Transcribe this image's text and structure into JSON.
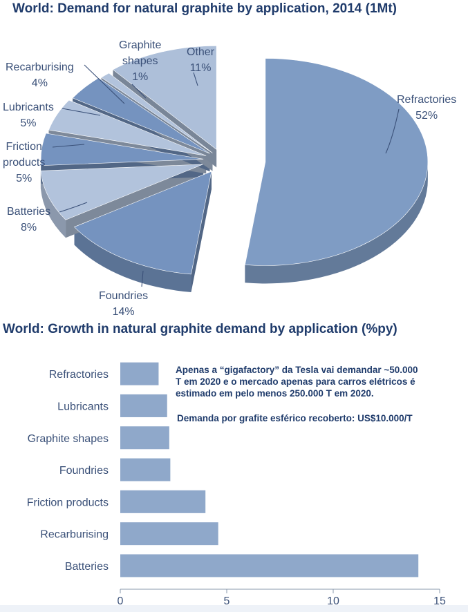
{
  "charts": [
    {
      "type": "pie",
      "title": "World: Demand for natural graphite by application, 2014 (1Mt)",
      "slices": [
        {
          "name": "Refractories",
          "pct_label": "52%",
          "value": 52,
          "color": "#7f9cc4"
        },
        {
          "name": "Foundries",
          "pct_label": "14%",
          "value": 14,
          "color": "#7593bf"
        },
        {
          "name": "Batteries",
          "pct_label": "8%",
          "value": 8,
          "color": "#b2c3dc"
        },
        {
          "name": "Friction products",
          "name_lines": [
            "Friction",
            "products"
          ],
          "pct_label": "5%",
          "value": 5,
          "color": "#7593bf"
        },
        {
          "name": "Lubricants",
          "pct_label": "5%",
          "value": 5,
          "color": "#b2c3dc"
        },
        {
          "name": "Recarburising",
          "pct_label": "4%",
          "value": 4,
          "color": "#7593bf"
        },
        {
          "name": "Graphite shapes",
          "name_lines": [
            "Graphite",
            "shapes"
          ],
          "pct_label": "1%",
          "value": 1,
          "color": "#b2c3dc"
        },
        {
          "name": "Other",
          "pct_label": "11%",
          "value": 11,
          "color": "#adbfd9"
        }
      ]
    },
    {
      "type": "bar",
      "orientation": "horizontal",
      "title": "World: Growth in natural graphite demand by application (%py)",
      "categories": [
        "Refractories",
        "Lubricants",
        "Graphite shapes",
        "Foundries",
        "Friction products",
        "Recarburising",
        "Batteries"
      ],
      "values": [
        1.8,
        2.2,
        2.3,
        2.35,
        4.0,
        4.6,
        14.0
      ],
      "xlim": [
        0,
        15
      ],
      "xticks": [
        "0",
        "5",
        "10",
        "15"
      ],
      "grid": false,
      "bar_color": "#8fa8ca"
    }
  ],
  "annotation": {
    "line1": "Apenas a “gigafactory” da Tesla vai demandar ~50.000",
    "line2": "T em 2020 e o mercado apenas para carros elétricos é",
    "line3": "estimado em pelo menos 250.000 T em 2020.",
    "line4": "Demanda por grafite esférico recoberto: US$10.000/T"
  }
}
